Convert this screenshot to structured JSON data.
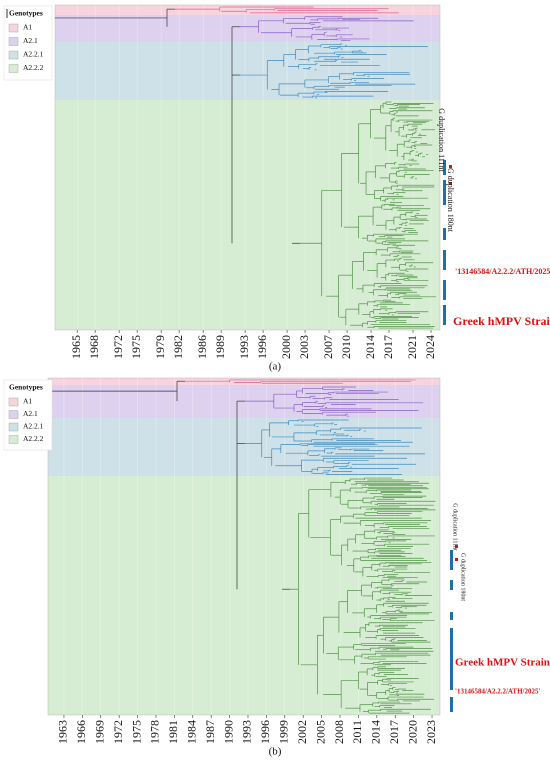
{
  "chart_data": [
    {
      "type": "tree",
      "panel_label": "(a)",
      "legend_title": "Genotypes",
      "series": [
        {
          "name": "A1",
          "color": "#f7d4dd"
        },
        {
          "name": "A2.1",
          "color": "#ddd1ef"
        },
        {
          "name": "A2.2.1",
          "color": "#cfe1e8"
        },
        {
          "name": "A2.2.2",
          "color": "#d6ecd3"
        }
      ],
      "xlim": [
        1961.3,
        2025.5
      ],
      "xticks": [
        1965,
        1968,
        1972,
        1975,
        1979,
        1982,
        1986,
        1989,
        1993,
        1996,
        2000,
        2003,
        2007,
        2010,
        2014,
        2017,
        2021,
        2024
      ],
      "annotations": [
        "G duplication 111nt",
        "G duplication 180nt",
        "'13146584/A2.2.2/ATH/2025'",
        "Greek hMPV Strains"
      ]
    },
    {
      "type": "tree",
      "panel_label": "(b)",
      "legend_title": "Genotypes",
      "series": [
        {
          "name": "A1",
          "color": "#f7d4dd"
        },
        {
          "name": "A2.1",
          "color": "#ddd1ef"
        },
        {
          "name": "A2.2.1",
          "color": "#cfe1e8"
        },
        {
          "name": "A2.2.2",
          "color": "#d6ecd3"
        }
      ],
      "xlim": [
        1960.4,
        2024.3
      ],
      "xticks": [
        1963,
        1966,
        1969,
        1972,
        1975,
        1978,
        1981,
        1984,
        1987,
        1990,
        1993,
        1996,
        1999,
        2002,
        2005,
        2008,
        2011,
        2014,
        2017,
        2020,
        2023
      ],
      "annotations": [
        "G duplication 111nt",
        "G duplication 180nt",
        "Greek hMPV Strains",
        "'13146584/A2.2.2/ATH/2025'"
      ]
    }
  ]
}
